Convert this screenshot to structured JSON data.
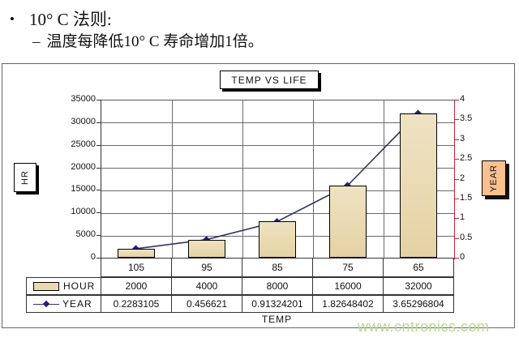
{
  "slide": {
    "bullet_symbol": "•",
    "heading": "10° C 法则:",
    "sub_dash": "–",
    "subheading": "温度每降低10° C 寿命增加1倍。"
  },
  "chart_data": {
    "type": "bar",
    "title": "TEMP VS LIFE",
    "categories": [
      "105",
      "95",
      "85",
      "75",
      "65"
    ],
    "series": [
      {
        "name": "HOUR",
        "type": "bar",
        "axis": "left",
        "values": [
          2000,
          4000,
          8000,
          16000,
          32000
        ]
      },
      {
        "name": "YEAR",
        "type": "line",
        "axis": "right",
        "values": [
          0.2283105,
          0.456621,
          0.91324201,
          1.82648402,
          3.65296804
        ]
      }
    ],
    "xlabel": "TEMP",
    "left_axis": {
      "title": "HR",
      "min": 0,
      "max": 35000,
      "step": 5000
    },
    "right_axis": {
      "title": "YEAR",
      "min": 0,
      "max": 4,
      "step": 0.5
    },
    "grid": true,
    "legend_position": "bottom-table"
  },
  "table": {
    "hour_row": {
      "label": "HOUR",
      "values": [
        "2000",
        "4000",
        "8000",
        "16000",
        "32000"
      ]
    },
    "year_row": {
      "label": "YEAR",
      "values": [
        "0.2283105",
        "0.456621",
        "0.91324201",
        "1.82648402",
        "3.65296804"
      ]
    }
  },
  "watermark": "www.cntronics.com",
  "colors": {
    "bar_fill": "#e9d9b0",
    "bar_border": "#000000",
    "line": "#333366",
    "marker": "#202080",
    "right_axis": "#cc2233",
    "year_box_fill": "#fac090",
    "watermark": "#b9d793"
  }
}
